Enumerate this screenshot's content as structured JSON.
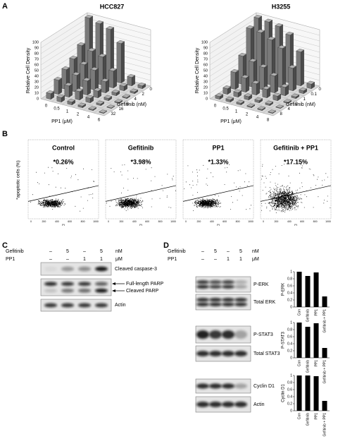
{
  "panel_a": {
    "label": "A",
    "charts": [
      {
        "title": "HCC827",
        "y_label": "Relative Cell Density",
        "x_label": "PP1 (μM)",
        "z_label": "Gefitinib (nM)",
        "ylim": [
          0,
          100
        ],
        "yticks": [
          0,
          10,
          20,
          30,
          40,
          50,
          60,
          70,
          80,
          90,
          100
        ],
        "x_ticks": [
          "0",
          "0.5",
          "1",
          "2",
          "4",
          "6"
        ],
        "z_ticks": [
          "0",
          "2",
          "4",
          "8",
          "16",
          "32"
        ],
        "values": [
          [
            100,
            95,
            90,
            70,
            15,
            5
          ],
          [
            60,
            55,
            50,
            30,
            8,
            3
          ],
          [
            45,
            40,
            35,
            20,
            5,
            2
          ],
          [
            35,
            30,
            25,
            12,
            4,
            2
          ],
          [
            25,
            20,
            15,
            8,
            3,
            1
          ],
          [
            10,
            8,
            5,
            3,
            2,
            1
          ]
        ]
      },
      {
        "title": "H3255",
        "y_label": "Relative Cell Density",
        "x_label": "PP1 (μM)",
        "z_label": "Gefitinib (nM)",
        "ylim": [
          0,
          100
        ],
        "yticks": [
          0,
          10,
          20,
          30,
          40,
          50,
          60,
          70,
          80,
          90,
          100
        ],
        "x_ticks": [
          "0",
          "0.5",
          "1",
          "2",
          "4",
          "8"
        ],
        "z_ticks": [
          "0",
          "0.1",
          "1",
          "2",
          "4",
          "8"
        ],
        "values": [
          [
            100,
            98,
            95,
            85,
            60,
            8
          ],
          [
            90,
            88,
            80,
            70,
            40,
            5
          ],
          [
            50,
            45,
            40,
            30,
            15,
            3
          ],
          [
            30,
            25,
            20,
            15,
            8,
            2
          ],
          [
            10,
            8,
            6,
            4,
            3,
            1
          ],
          [
            5,
            4,
            3,
            2,
            2,
            1
          ]
        ]
      }
    ]
  },
  "panel_b": {
    "label": "B",
    "y_label": "*apoptotic cells (%)",
    "x_label": "PI",
    "x_ticks": [
      "0",
      "200",
      "400",
      "600",
      "800",
      "1000"
    ],
    "plots": [
      {
        "title": "Control",
        "value": "*0.26%"
      },
      {
        "title": "Gefitinib",
        "value": "*3.98%"
      },
      {
        "title": "PP1",
        "value": "*1.33%"
      },
      {
        "title": "Gefitinib + PP1",
        "value": "*17.15%"
      }
    ]
  },
  "panel_c": {
    "label": "C",
    "treatments": [
      {
        "name": "Gefitinib",
        "lanes": [
          "–",
          "5",
          "–",
          "5"
        ],
        "unit": "nM"
      },
      {
        "name": "PP1",
        "lanes": [
          "–",
          "–",
          "1",
          "1"
        ],
        "unit": "μM"
      }
    ],
    "blots": [
      {
        "labels": [
          "Cleaved caspase-3"
        ]
      },
      {
        "labels": [
          "Full-length PARP",
          "Cleaved PARP"
        ]
      },
      {
        "labels": [
          "Actin"
        ]
      }
    ]
  },
  "panel_d": {
    "label": "D",
    "treatments": [
      {
        "name": "Gefitinib",
        "lanes": [
          "–",
          "5",
          "–",
          "5"
        ],
        "unit": "nM"
      },
      {
        "name": "PP1",
        "lanes": [
          "–",
          "–",
          "1",
          "1"
        ],
        "unit": "μM"
      }
    ],
    "blots": [
      "P-ERK",
      "Total ERK",
      "P-STAT3",
      "Total STAT3",
      "Cyclin D1",
      "Actin"
    ],
    "charts": [
      {
        "y_label": "P-ERK",
        "categories": [
          "Con",
          "Gefitinib",
          "PP1",
          "Gefitinib + PP1"
        ],
        "values": [
          1,
          0.88,
          0.98,
          0.3
        ],
        "ylim": [
          0,
          1
        ],
        "yticks": [
          0,
          0.2,
          0.4,
          0.6,
          0.8,
          1
        ]
      },
      {
        "y_label": "P-STAT3",
        "categories": [
          "Con",
          "Gefitinib",
          "PP1",
          "Gefitinib + PP1"
        ],
        "values": [
          1,
          0.88,
          0.98,
          0.28
        ],
        "ylim": [
          0,
          1
        ],
        "yticks": [
          0,
          0.2,
          0.4,
          0.6,
          0.8,
          1
        ]
      },
      {
        "y_label": "Cyclin D1",
        "categories": [
          "Con",
          "Gefitinib",
          "PP1",
          "Gefitinib + PP1"
        ],
        "values": [
          1,
          1,
          0.98,
          0.28
        ],
        "ylim": [
          0,
          1
        ],
        "yticks": [
          0,
          0.2,
          0.4,
          0.6,
          0.8,
          1
        ]
      }
    ]
  }
}
